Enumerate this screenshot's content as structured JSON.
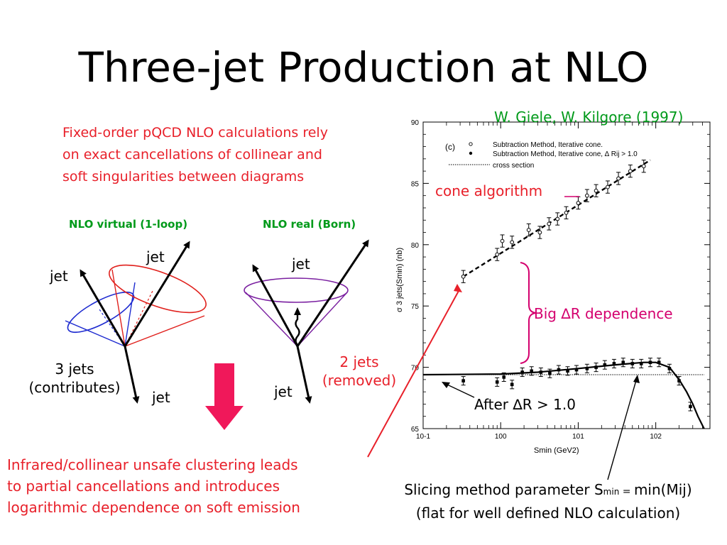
{
  "slide": {
    "title": "Three-jet Production at NLO",
    "intro_lines": [
      "Fixed-order pQCD NLO calculations rely",
      "on exact cancellations of collinear and",
      "soft singularities between diagrams"
    ],
    "diagram_left": {
      "label": "NLO virtual (1-loop)",
      "jet_labels": [
        "jet",
        "jet",
        "jet"
      ],
      "caption_lines": [
        "3 jets",
        "(contributes)"
      ]
    },
    "diagram_right": {
      "label": "NLO real (Born)",
      "jet_labels": [
        "jet",
        "jet"
      ],
      "caption_lines": [
        "2 jets",
        "(removed)"
      ]
    },
    "conclusion_lines": [
      "Infrared/collinear unsafe clustering leads",
      "to partial cancellations and introduces",
      "logarithmic dependence on soft emission"
    ],
    "citation": "W. Giele, W. Kilgore (1997)",
    "cone_label": "cone algorithm",
    "big_dr_label": "Big ∆R dependence",
    "after_dr_label": "After ∆R > 1.0",
    "slicing": {
      "line1_prefix": "Slicing method parameter S",
      "line1_sub": "min",
      "line1_eq": " = ",
      "line1_suffix": "min(Mij)",
      "line2": "(flat for well defined NLO calculation)"
    },
    "colors": {
      "red_text": "#e8202a",
      "green_text": "#009a1a",
      "magenta": "#d4006e",
      "arrow_fill": "#f0185a",
      "cone_blue": "#1e2bd0",
      "cone_red": "#e0201c",
      "cone_purple": "#7a1fa0"
    }
  },
  "chart_data": {
    "type": "scatter",
    "panel_label": "(c)",
    "ylabel": "σ 3 jets(Smin) (nb)",
    "xlabel": "Smin (GeV2)",
    "x_scale": "log",
    "xlim": [
      0.1,
      500
    ],
    "ylim": [
      65,
      90
    ],
    "x_ticks": [
      "10-1",
      "100",
      "101",
      "102"
    ],
    "y_ticks": [
      65,
      70,
      75,
      80,
      85,
      90
    ],
    "legend": [
      "Subtraction Method, Iterative cone.",
      "Subtraction Method, Iterative cone, ∆ Rij > 1.0",
      "cross section"
    ],
    "series": [
      {
        "name": "Subtraction Method, Iterative cone.",
        "marker": "open",
        "x": [
          0.33,
          0.9,
          1.05,
          1.4,
          2.3,
          3.2,
          4.2,
          5.4,
          7.0,
          10,
          13,
          17,
          24,
          33,
          47,
          70
        ],
        "y": [
          77.4,
          79.2,
          80.3,
          80.2,
          81.2,
          81.0,
          81.7,
          82.1,
          82.6,
          83.4,
          84.0,
          84.4,
          84.7,
          85.4,
          86.0,
          86.4
        ]
      },
      {
        "name": "Subtraction Method, Iterative cone, ∆ Rij > 1.0",
        "marker": "filled",
        "x": [
          0.33,
          0.9,
          1.1,
          1.4,
          1.9,
          2.5,
          3.3,
          4.3,
          5.6,
          7.3,
          9.5,
          13,
          17,
          22,
          29,
          38,
          50,
          65,
          85,
          110,
          150,
          200,
          280
        ],
        "y": [
          68.9,
          68.8,
          69.2,
          68.6,
          69.6,
          69.7,
          69.6,
          69.5,
          69.8,
          69.7,
          69.8,
          69.9,
          70.0,
          70.2,
          70.3,
          70.4,
          70.3,
          70.3,
          70.4,
          70.4,
          69.9,
          68.9,
          66.8
        ]
      }
    ],
    "cross_section": 69.4
  }
}
